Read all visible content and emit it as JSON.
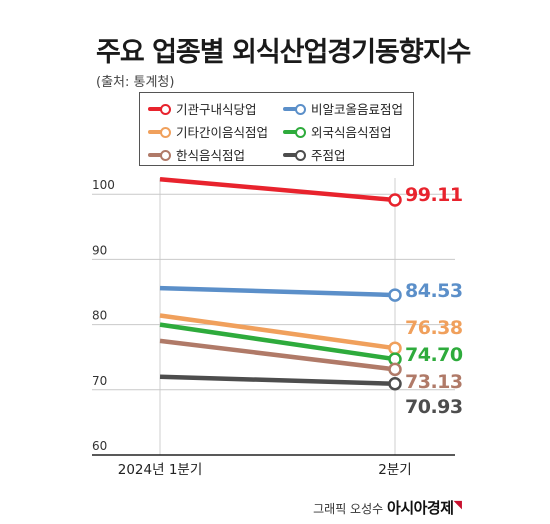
{
  "title": "주요 업종별 외식산업경기동향지수",
  "source": "(출처: 통계청)",
  "credit": {
    "text": "그래픽 오성수",
    "brand": "아시아경제"
  },
  "chart_data": {
    "type": "line",
    "title": "주요 업종별 외식산업경기동향지수",
    "categories": [
      "2024년 1분기",
      "2분기"
    ],
    "ylim": [
      60,
      100
    ],
    "yticks": [
      "100",
      "90",
      "80",
      "70",
      "60"
    ],
    "grid": true,
    "legend": "top",
    "series": [
      {
        "name": "기관구내식당업",
        "color": "#e8232d",
        "values": [
          102.3,
          99.11
        ],
        "label": "99.11"
      },
      {
        "name": "비알코올음료점업",
        "color": "#5b8fc9",
        "values": [
          85.6,
          84.53
        ],
        "label": "84.53"
      },
      {
        "name": "기타간이음식점업",
        "color": "#f0a05c",
        "values": [
          81.4,
          76.38
        ],
        "label": "76.38"
      },
      {
        "name": "외국식음식점업",
        "color": "#2eab3c",
        "values": [
          80.0,
          74.7
        ],
        "label": "74.70"
      },
      {
        "name": "한식음식점업",
        "color": "#b07a68",
        "values": [
          77.5,
          73.13
        ],
        "label": "73.13"
      },
      {
        "name": "주점업",
        "color": "#4d4d4d",
        "values": [
          72.0,
          70.93
        ],
        "label": "70.93"
      }
    ]
  }
}
